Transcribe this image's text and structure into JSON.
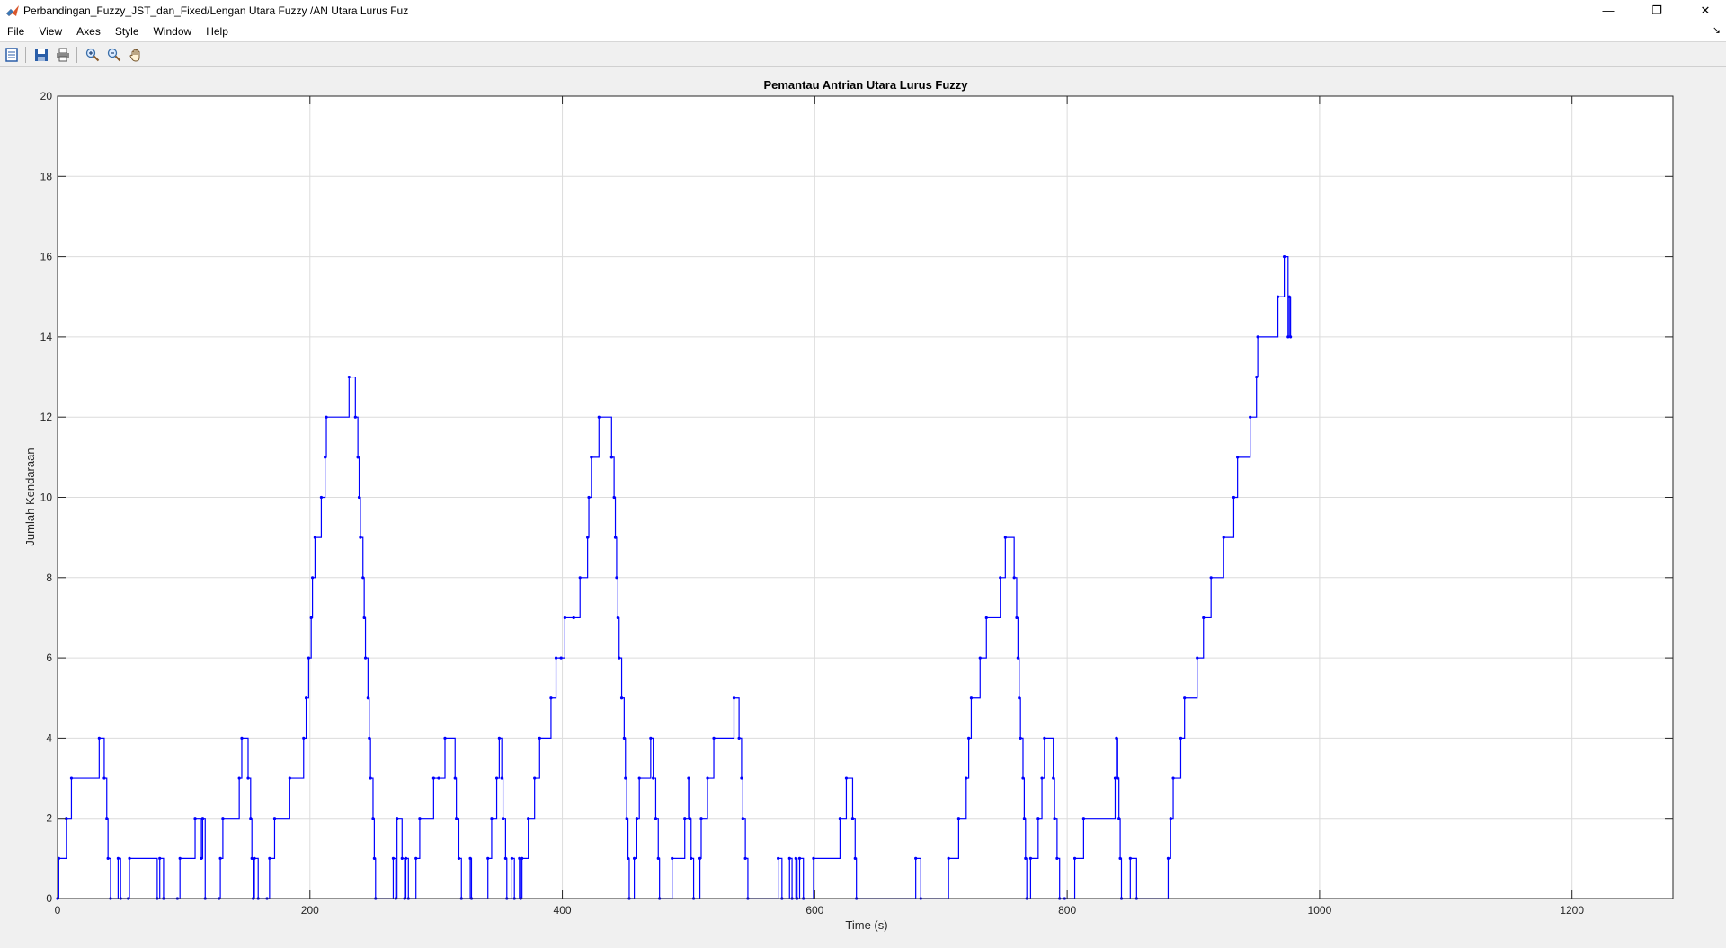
{
  "window": {
    "title": "Perbandingan_Fuzzy_JST_dan_Fixed/Lengan Utara Fuzzy  /AN Utara Lurus Fuz",
    "minimize_glyph": "—",
    "restore_glyph": "❐",
    "close_glyph": "✕"
  },
  "menubar": {
    "items": [
      {
        "label": "File"
      },
      {
        "label": "View"
      },
      {
        "label": "Axes"
      },
      {
        "label": "Style"
      },
      {
        "label": "Window"
      },
      {
        "label": "Help"
      }
    ],
    "dock_glyph": "↘"
  },
  "toolbar": {
    "icons": [
      "parameters-icon",
      "save-icon",
      "print-icon",
      "zoom-in-icon",
      "zoom-out-icon",
      "pan-icon"
    ]
  },
  "colors": {
    "line": "#0000ff",
    "grid": "#dcdcdc",
    "axes_bg": "#ffffff",
    "figure_bg": "#f0f0f0"
  },
  "chart_data": {
    "type": "line",
    "title": "Pemantau Antrian Utara Lurus Fuzzy",
    "xlabel": "Time (s)",
    "ylabel": "Jumlah Kendaraan",
    "xlim": [
      0,
      1280
    ],
    "ylim": [
      0,
      20
    ],
    "xticks": [
      0,
      200,
      400,
      600,
      800,
      1000,
      1200
    ],
    "yticks": [
      0,
      2,
      4,
      6,
      8,
      10,
      12,
      14,
      16,
      18,
      20
    ],
    "grid": true,
    "legend": "none",
    "step": true,
    "markers": true,
    "series": [
      {
        "points": [
          [
            0,
            0
          ],
          [
            1,
            1
          ],
          [
            7,
            2
          ],
          [
            11,
            3
          ],
          [
            33,
            4
          ],
          [
            37,
            3
          ],
          [
            39,
            2
          ],
          [
            40,
            1
          ],
          [
            42,
            0
          ],
          [
            48,
            1
          ],
          [
            50,
            0
          ],
          [
            56,
            0
          ],
          [
            57,
            1
          ],
          [
            79,
            0
          ],
          [
            81,
            1
          ],
          [
            84,
            0
          ],
          [
            95,
            0
          ],
          [
            97,
            1
          ],
          [
            109,
            2
          ],
          [
            114,
            1
          ],
          [
            115,
            2
          ],
          [
            117,
            0
          ],
          [
            128,
            0
          ],
          [
            129,
            1
          ],
          [
            131,
            2
          ],
          [
            144,
            3
          ],
          [
            146,
            4
          ],
          [
            151,
            3
          ],
          [
            153,
            2
          ],
          [
            154,
            1
          ],
          [
            155,
            0
          ],
          [
            156,
            1
          ],
          [
            159,
            0
          ],
          [
            166,
            0
          ],
          [
            168,
            1
          ],
          [
            172,
            2
          ],
          [
            184,
            3
          ],
          [
            195,
            4
          ],
          [
            197,
            5
          ],
          [
            199,
            6
          ],
          [
            201,
            7
          ],
          [
            202,
            8
          ],
          [
            204,
            9
          ],
          [
            209,
            10
          ],
          [
            212,
            11
          ],
          [
            213,
            12
          ],
          [
            231,
            13
          ],
          [
            236,
            12
          ],
          [
            238,
            11
          ],
          [
            239,
            10
          ],
          [
            240,
            9
          ],
          [
            242,
            8
          ],
          [
            243,
            7
          ],
          [
            244,
            6
          ],
          [
            246,
            5
          ],
          [
            247,
            4
          ],
          [
            248,
            3
          ],
          [
            250,
            2
          ],
          [
            251,
            1
          ],
          [
            252,
            0
          ],
          [
            266,
            1
          ],
          [
            268,
            0
          ],
          [
            269,
            2
          ],
          [
            273,
            1
          ],
          [
            275,
            0
          ],
          [
            276,
            1
          ],
          [
            278,
            0
          ],
          [
            284,
            1
          ],
          [
            287,
            2
          ],
          [
            298,
            3
          ],
          [
            302,
            3
          ],
          [
            307,
            4
          ],
          [
            315,
            3
          ],
          [
            316,
            2
          ],
          [
            318,
            1
          ],
          [
            320,
            0
          ],
          [
            327,
            1
          ],
          [
            328,
            0
          ],
          [
            341,
            1
          ],
          [
            344,
            2
          ],
          [
            348,
            3
          ],
          [
            350,
            4
          ],
          [
            352,
            3
          ],
          [
            353,
            2
          ],
          [
            355,
            1
          ],
          [
            356,
            0
          ],
          [
            360,
            1
          ],
          [
            362,
            0
          ],
          [
            366,
            1
          ],
          [
            367,
            0
          ],
          [
            368,
            1
          ],
          [
            373,
            2
          ],
          [
            378,
            3
          ],
          [
            382,
            4
          ],
          [
            391,
            5
          ],
          [
            395,
            6
          ],
          [
            399,
            6
          ],
          [
            402,
            7
          ],
          [
            409,
            7
          ],
          [
            414,
            8
          ],
          [
            420,
            9
          ],
          [
            421,
            10
          ],
          [
            423,
            11
          ],
          [
            429,
            12
          ],
          [
            439,
            11
          ],
          [
            441,
            10
          ],
          [
            442,
            9
          ],
          [
            443,
            8
          ],
          [
            444,
            7
          ],
          [
            445,
            6
          ],
          [
            447,
            5
          ],
          [
            449,
            4
          ],
          [
            450,
            3
          ],
          [
            451,
            2
          ],
          [
            452,
            1
          ],
          [
            453,
            0
          ],
          [
            457,
            1
          ],
          [
            459,
            2
          ],
          [
            461,
            3
          ],
          [
            470,
            4
          ],
          [
            472,
            3
          ],
          [
            474,
            2
          ],
          [
            476,
            1
          ],
          [
            477,
            0
          ],
          [
            487,
            1
          ],
          [
            497,
            2
          ],
          [
            500,
            3
          ],
          [
            501,
            2
          ],
          [
            502,
            1
          ],
          [
            504,
            0
          ],
          [
            509,
            1
          ],
          [
            510,
            2
          ],
          [
            515,
            3
          ],
          [
            520,
            4
          ],
          [
            536,
            5
          ],
          [
            540,
            4
          ],
          [
            542,
            3
          ],
          [
            543,
            2
          ],
          [
            545,
            1
          ],
          [
            547,
            0
          ],
          [
            571,
            1
          ],
          [
            574,
            0
          ],
          [
            580,
            1
          ],
          [
            582,
            0
          ],
          [
            585,
            1
          ],
          [
            586,
            0
          ],
          [
            588,
            1
          ],
          [
            591,
            0
          ],
          [
            599,
            1
          ],
          [
            620,
            2
          ],
          [
            625,
            3
          ],
          [
            630,
            2
          ],
          [
            632,
            1
          ],
          [
            633,
            0
          ],
          [
            680,
            1
          ],
          [
            684,
            0
          ],
          [
            706,
            1
          ],
          [
            714,
            2
          ],
          [
            720,
            3
          ],
          [
            722,
            4
          ],
          [
            724,
            5
          ],
          [
            731,
            6
          ],
          [
            736,
            7
          ],
          [
            747,
            8
          ],
          [
            751,
            9
          ],
          [
            758,
            8
          ],
          [
            760,
            7
          ],
          [
            761,
            6
          ],
          [
            762,
            5
          ],
          [
            763,
            4
          ],
          [
            765,
            3
          ],
          [
            766,
            2
          ],
          [
            767,
            1
          ],
          [
            768,
            0
          ],
          [
            771,
            1
          ],
          [
            777,
            2
          ],
          [
            780,
            3
          ],
          [
            782,
            4
          ],
          [
            789,
            3
          ],
          [
            790,
            2
          ],
          [
            792,
            1
          ],
          [
            794,
            0
          ],
          [
            798,
            0
          ],
          [
            806,
            1
          ],
          [
            813,
            2
          ],
          [
            838,
            3
          ],
          [
            839,
            4
          ],
          [
            840,
            3
          ],
          [
            841,
            2
          ],
          [
            842,
            1
          ],
          [
            843,
            0
          ],
          [
            850,
            1
          ],
          [
            855,
            0
          ],
          [
            880,
            1
          ],
          [
            882,
            2
          ],
          [
            884,
            3
          ],
          [
            890,
            4
          ],
          [
            893,
            5
          ],
          [
            903,
            6
          ],
          [
            908,
            7
          ],
          [
            914,
            8
          ],
          [
            924,
            9
          ],
          [
            932,
            10
          ],
          [
            935,
            11
          ],
          [
            945,
            12
          ],
          [
            950,
            13
          ],
          [
            951,
            14
          ],
          [
            967,
            15
          ],
          [
            972,
            16
          ],
          [
            975,
            14
          ],
          [
            976,
            15
          ],
          [
            977,
            14
          ]
        ]
      }
    ]
  }
}
